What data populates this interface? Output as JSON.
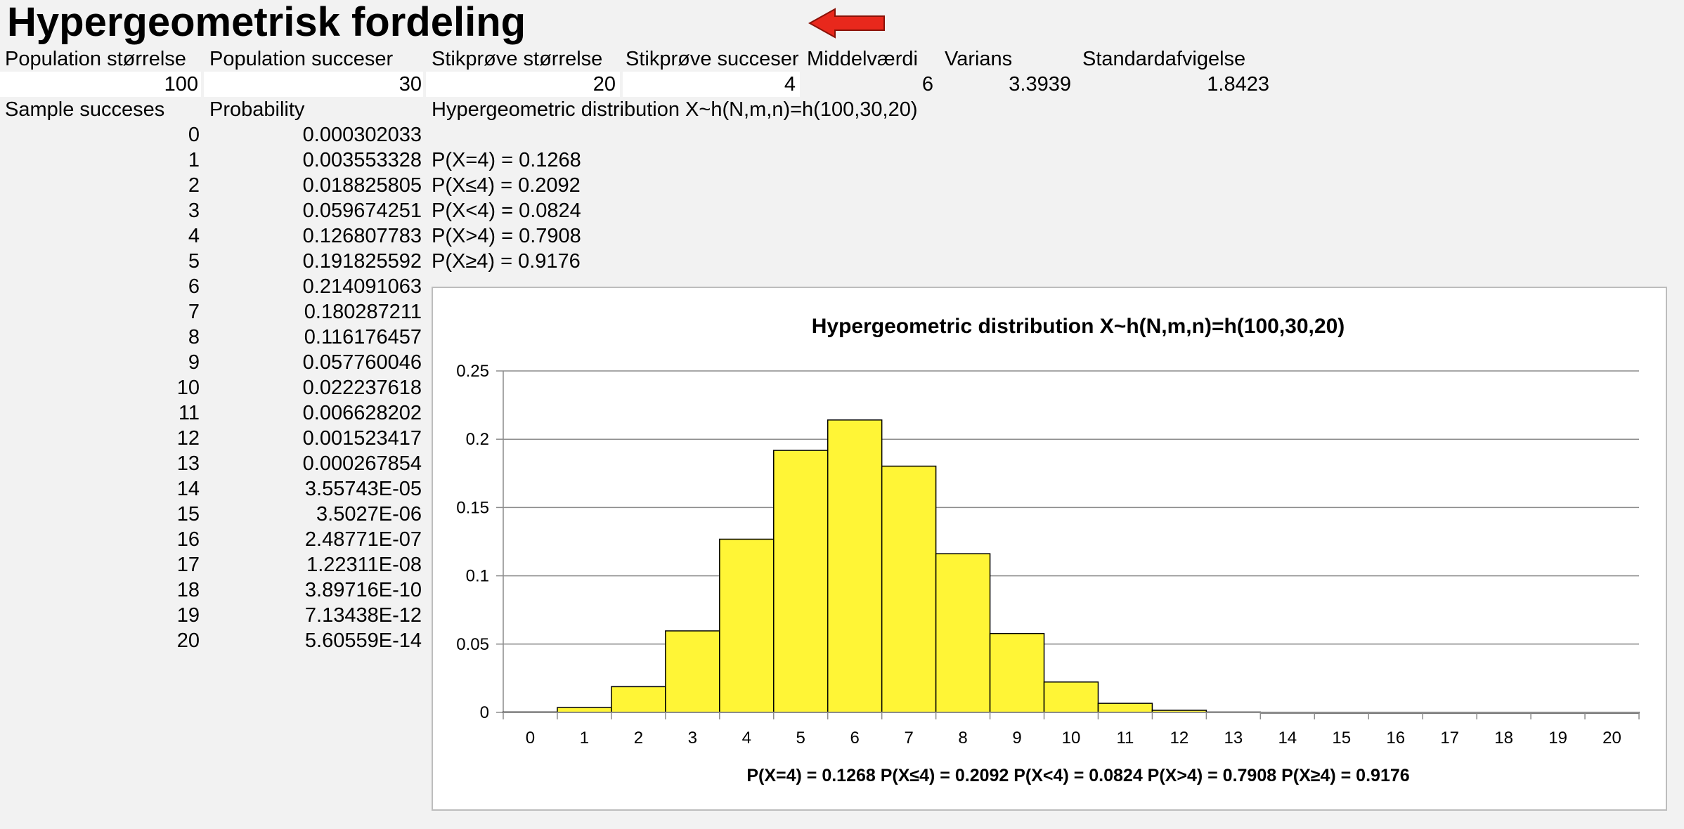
{
  "title": "Hypergeometrisk fordeling",
  "headers": {
    "pop_size": "Population størrelse",
    "pop_succ": "Population succeser",
    "sample_size": "Stikprøve størrelse",
    "sample_succ": "Stikprøve succeser",
    "mean": "Middelværdi",
    "variance": "Varians",
    "stddev": "Standardafvigelse"
  },
  "values": {
    "pop_size": "100",
    "pop_succ": "30",
    "sample_size": "20",
    "sample_succ": "4",
    "mean": "6",
    "variance": "3.3939",
    "stddev": "1.8423"
  },
  "table": {
    "col_x": "Sample succeses",
    "col_p": "Probability",
    "dist_label": "Hypergeometric distribution X~h(N,m,n)=h(100,30,20)",
    "rows": [
      {
        "x": "0",
        "p": "0.000302033"
      },
      {
        "x": "1",
        "p": "0.003553328"
      },
      {
        "x": "2",
        "p": "0.018825805"
      },
      {
        "x": "3",
        "p": "0.059674251"
      },
      {
        "x": "4",
        "p": "0.126807783"
      },
      {
        "x": "5",
        "p": "0.191825592"
      },
      {
        "x": "6",
        "p": "0.214091063"
      },
      {
        "x": "7",
        "p": "0.180287211"
      },
      {
        "x": "8",
        "p": "0.116176457"
      },
      {
        "x": "9",
        "p": "0.057760046"
      },
      {
        "x": "10",
        "p": "0.022237618"
      },
      {
        "x": "11",
        "p": "0.006628202"
      },
      {
        "x": "12",
        "p": "0.001523417"
      },
      {
        "x": "13",
        "p": "0.000267854"
      },
      {
        "x": "14",
        "p": "3.55743E-05"
      },
      {
        "x": "15",
        "p": "3.5027E-06"
      },
      {
        "x": "16",
        "p": "2.48771E-07"
      },
      {
        "x": "17",
        "p": "1.22311E-08"
      },
      {
        "x": "18",
        "p": "3.89716E-10"
      },
      {
        "x": "19",
        "p": "7.13438E-12"
      },
      {
        "x": "20",
        "p": "5.60559E-14"
      }
    ]
  },
  "stats": [
    "P(X=4) = 0.1268",
    "P(X≤4) = 0.2092",
    "P(X<4) = 0.0824",
    "P(X>4) = 0.7908",
    "P(X≥4) = 0.9176"
  ],
  "arrow_color": "#e8281c",
  "chart_data": {
    "type": "bar",
    "title": "Hypergeometric distribution X~h(N,m,n)=h(100,30,20)",
    "xlabel": "P(X=4) = 0.1268  P(X≤4) = 0.2092  P(X<4) = 0.0824  P(X>4) = 0.7908  P(X≥4) = 0.9176",
    "ylabel": "",
    "categories": [
      "0",
      "1",
      "2",
      "3",
      "4",
      "5",
      "6",
      "7",
      "8",
      "9",
      "10",
      "11",
      "12",
      "13",
      "14",
      "15",
      "16",
      "17",
      "18",
      "19",
      "20"
    ],
    "values": [
      0.000302033,
      0.003553328,
      0.018825805,
      0.059674251,
      0.126807783,
      0.191825592,
      0.214091063,
      0.180287211,
      0.116176457,
      0.057760046,
      0.022237618,
      0.006628202,
      0.001523417,
      0.000267854,
      3.55743e-05,
      3.5027e-06,
      2.48771e-07,
      1.22311e-08,
      3.89716e-10,
      7.13438e-12,
      5.60559e-14
    ],
    "yticks": [
      "0",
      "0.05",
      "0.1",
      "0.15",
      "0.2",
      "0.25"
    ],
    "ylim": [
      0,
      0.25
    ],
    "bar_color": "#fff536",
    "grid": true,
    "legend": "none"
  }
}
